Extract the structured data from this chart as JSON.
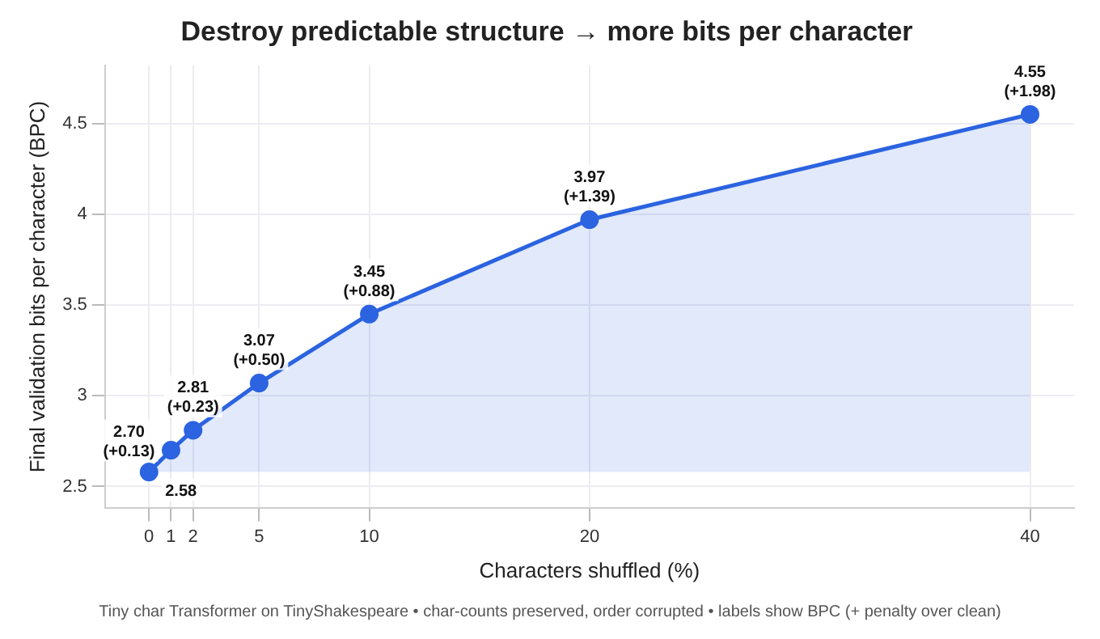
{
  "chart_data": {
    "type": "area",
    "title": "Destroy predictable structure → more bits per character",
    "xlabel": "Characters shuffled (%)",
    "ylabel": "Final validation bits per character (BPC)",
    "x": [
      0,
      1,
      2,
      5,
      10,
      20,
      40
    ],
    "series": [
      {
        "color": "#2b63e0",
        "values": [
          2.58,
          2.7,
          2.81,
          3.07,
          3.45,
          3.97,
          4.55
        ],
        "value_labels": [
          "2.58",
          "2.70\n(+0.13)",
          "2.81\n(+0.23)",
          "3.07\n(+0.50)",
          "3.45\n(+0.88)",
          "3.97\n(+1.39)",
          "4.55\n(+1.98)"
        ]
      }
    ],
    "xlim": [
      -2,
      42
    ],
    "xticks": [
      0,
      1,
      2,
      5,
      10,
      20,
      40
    ],
    "ylim": [
      2.38,
      4.82
    ],
    "yticks": [
      2.5,
      3.0,
      3.5,
      4.0,
      4.5
    ],
    "grid": true,
    "legend": false,
    "marker": "circle",
    "line_style": "solid",
    "annotations": [
      "Tiny char Transformer on TinyShakespeare • char-counts preserved, order corrupted • labels show BPC (+ penalty over clean)"
    ]
  }
}
